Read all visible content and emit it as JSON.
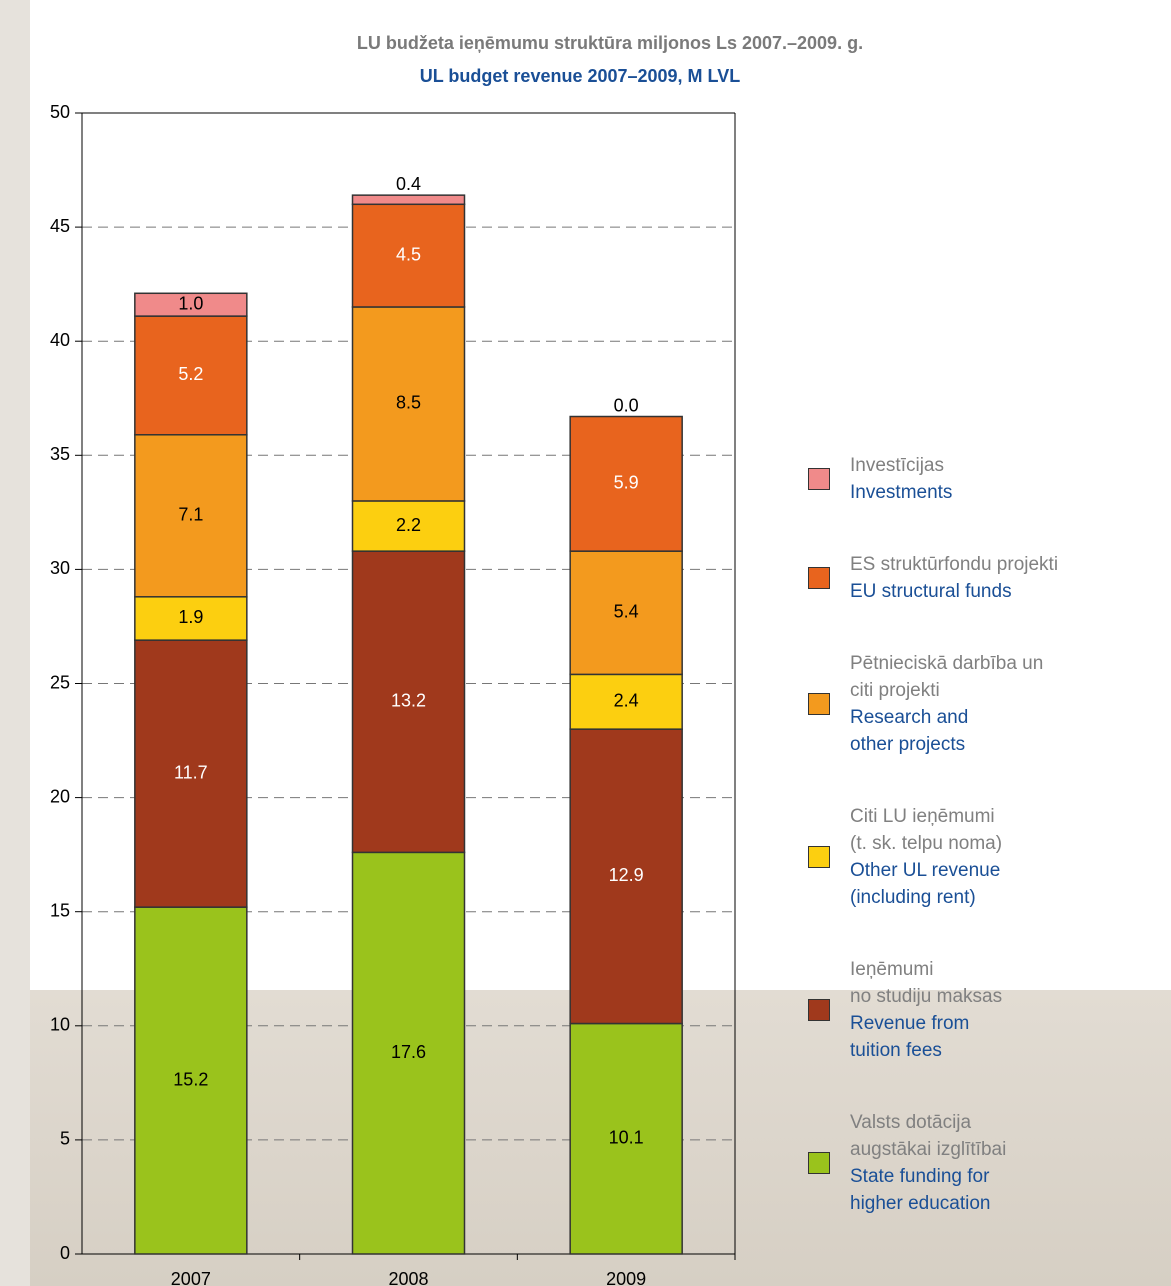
{
  "chart_data": {
    "type": "stacked_bar",
    "title": "LU budžeta ieņēmumu struktūra miljonos Ls 2007.–2009. g.",
    "subtitle": "UL budget revenue 2007–2009, M LVL",
    "categories": [
      "2007",
      "2008",
      "2009"
    ],
    "series": [
      {
        "name": "State funding for\nhigher education",
        "name_lv": "Valsts dotācija\naugstākai izglītībai",
        "color": "#9ac31c",
        "label_color": "#000000",
        "values": [
          15.2,
          17.6,
          10.1
        ]
      },
      {
        "name": "Revenue from\ntuition fees",
        "name_lv": "Ieņēmumi\nno studiju maksas",
        "color": "#a0391c",
        "label_color": "#ffffff",
        "values": [
          11.7,
          13.2,
          12.9
        ]
      },
      {
        "name": "Other UL revenue\n(including rent)",
        "name_lv": "Citi LU ieņēmumi\n(t. sk. telpu noma)",
        "color": "#fccf10",
        "label_color": "#000000",
        "values": [
          1.9,
          2.2,
          2.4
        ]
      },
      {
        "name": "Research and\nother projects",
        "name_lv": "Pētnieciskā darbība un\nciti projekti",
        "color": "#f39a1e",
        "label_color": "#000000",
        "values": [
          7.1,
          8.5,
          5.4
        ]
      },
      {
        "name": "EU structural funds",
        "name_lv": "ES struktūrfondu projekti",
        "color": "#e8641e",
        "label_color": "#ffffff",
        "values": [
          5.2,
          4.5,
          5.9
        ]
      },
      {
        "name": "Investments",
        "name_lv": "Investīcijas",
        "color": "#f08a8a",
        "label_color": "#000000",
        "values": [
          1.0,
          0.4,
          0.0
        ],
        "value_labels": [
          "1.0",
          "0.4",
          "0.0"
        ]
      }
    ],
    "ylim": [
      0,
      50
    ],
    "yticks": [
      0,
      5,
      10,
      15,
      20,
      25,
      30,
      35,
      40,
      45,
      50
    ],
    "grid": true,
    "legend": "right"
  }
}
